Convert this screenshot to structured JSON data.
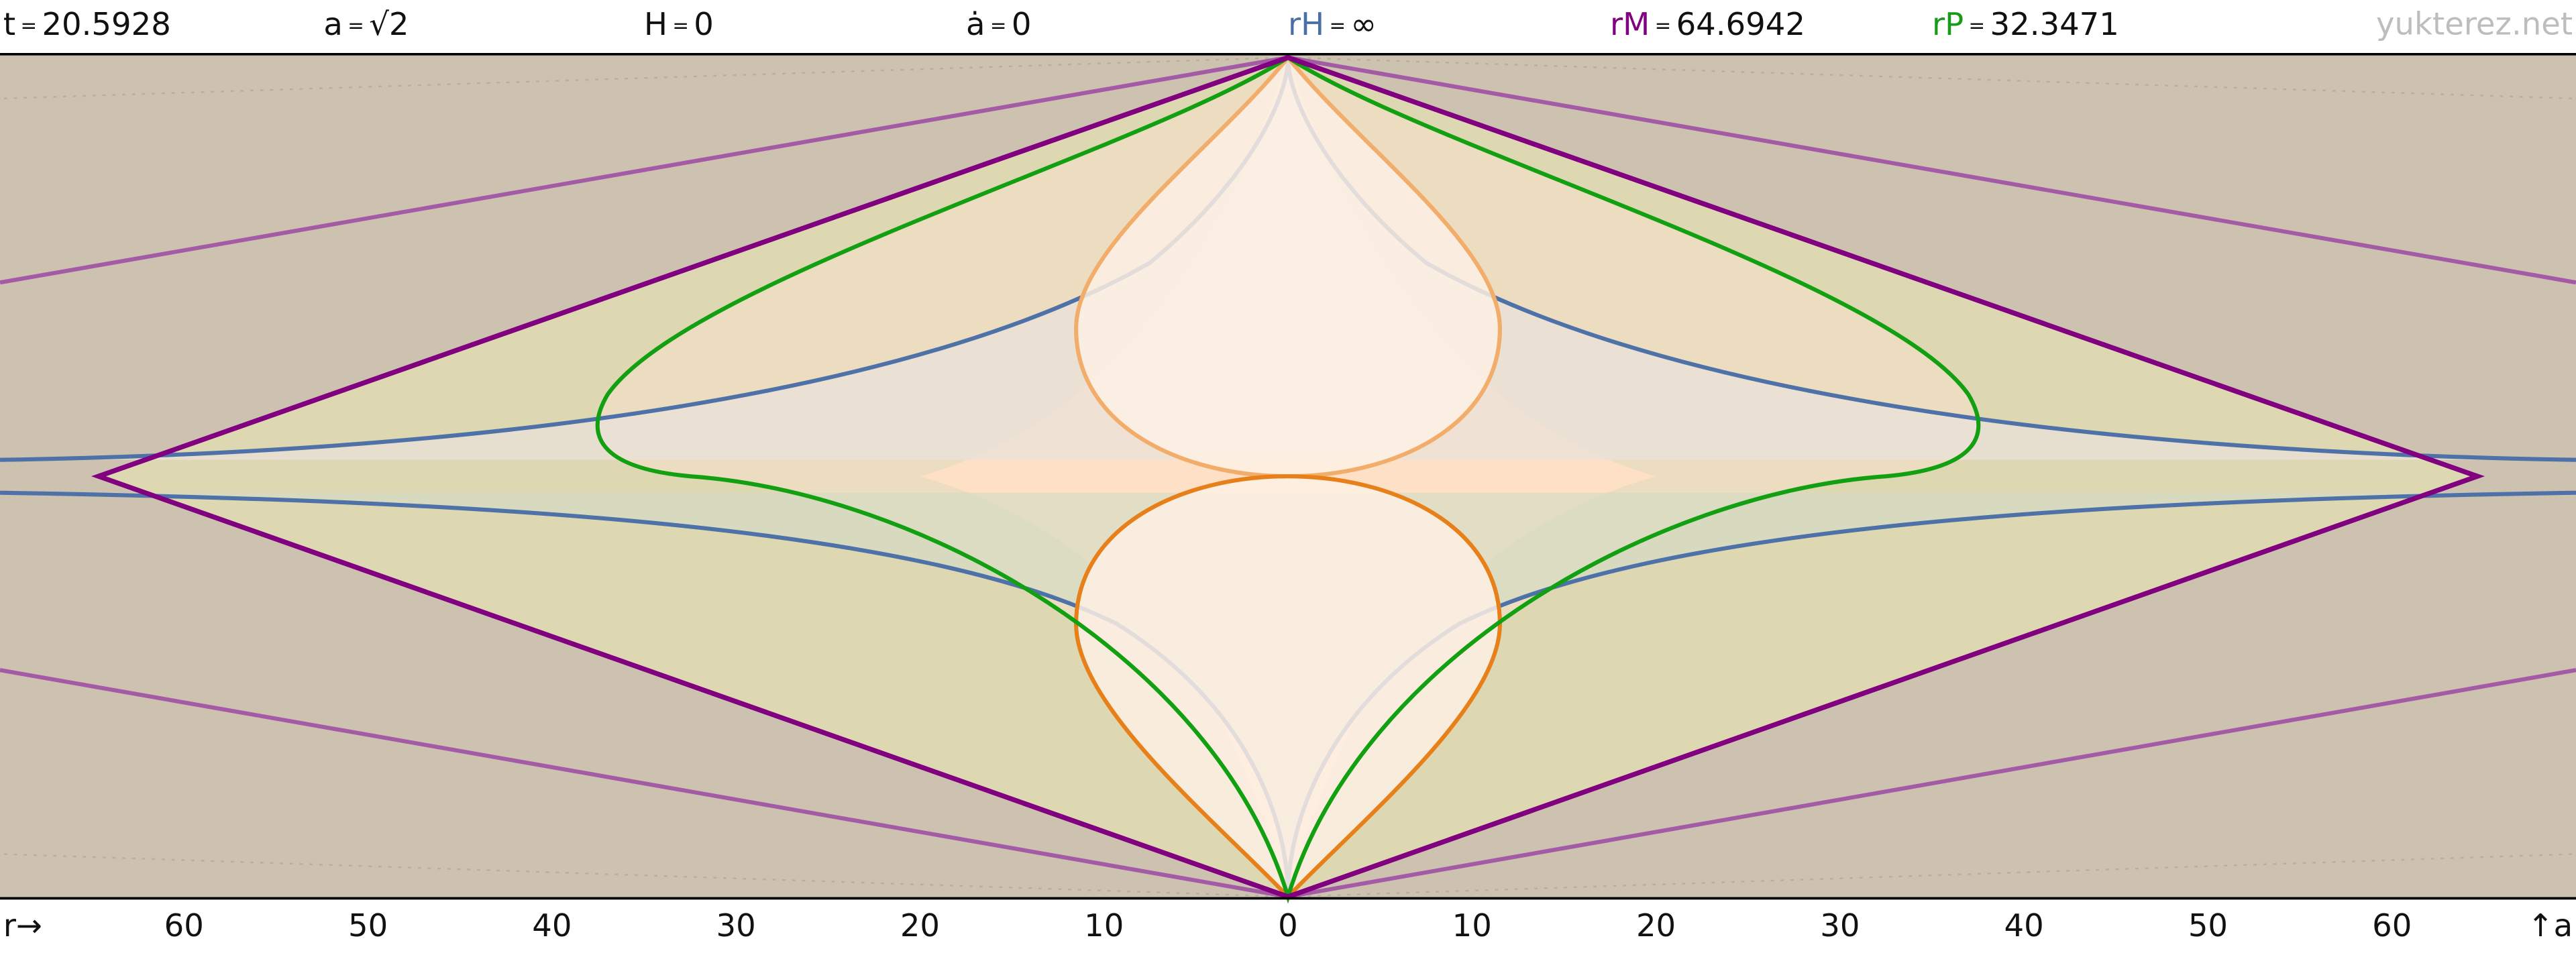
{
  "header": [
    {
      "symbol": "t",
      "sign": "=",
      "value": "20.5928",
      "color": "#111111"
    },
    {
      "symbol": "a",
      "sign": "=",
      "value": "√2",
      "color": "#111111"
    },
    {
      "symbol": "H",
      "sign": "=",
      "value": "0",
      "color": "#111111"
    },
    {
      "symbol": "ȧ",
      "sign": "=",
      "value": "0",
      "color": "#111111"
    },
    {
      "symbol": "rH",
      "sign": "=",
      "value": "∞",
      "color": "#4a6fa5"
    },
    {
      "symbol": "rM",
      "sign": "=",
      "value": "64.6942",
      "color": "#800080"
    },
    {
      "symbol": "rP",
      "sign": "=",
      "value": "32.3471",
      "color": "#1a9a1a"
    }
  ],
  "watermark": "yukterez.net",
  "x_axis": {
    "start_label": "r→",
    "end_label": "↑a",
    "xlim": [
      -70,
      70
    ],
    "ticks": [
      {
        "value": -60,
        "label": "60"
      },
      {
        "value": -50,
        "label": "50"
      },
      {
        "value": -40,
        "label": "40"
      },
      {
        "value": -30,
        "label": "30"
      },
      {
        "value": -20,
        "label": "20"
      },
      {
        "value": -10,
        "label": "10"
      },
      0,
      10,
      20,
      30,
      40,
      50,
      60
    ]
  }
}
